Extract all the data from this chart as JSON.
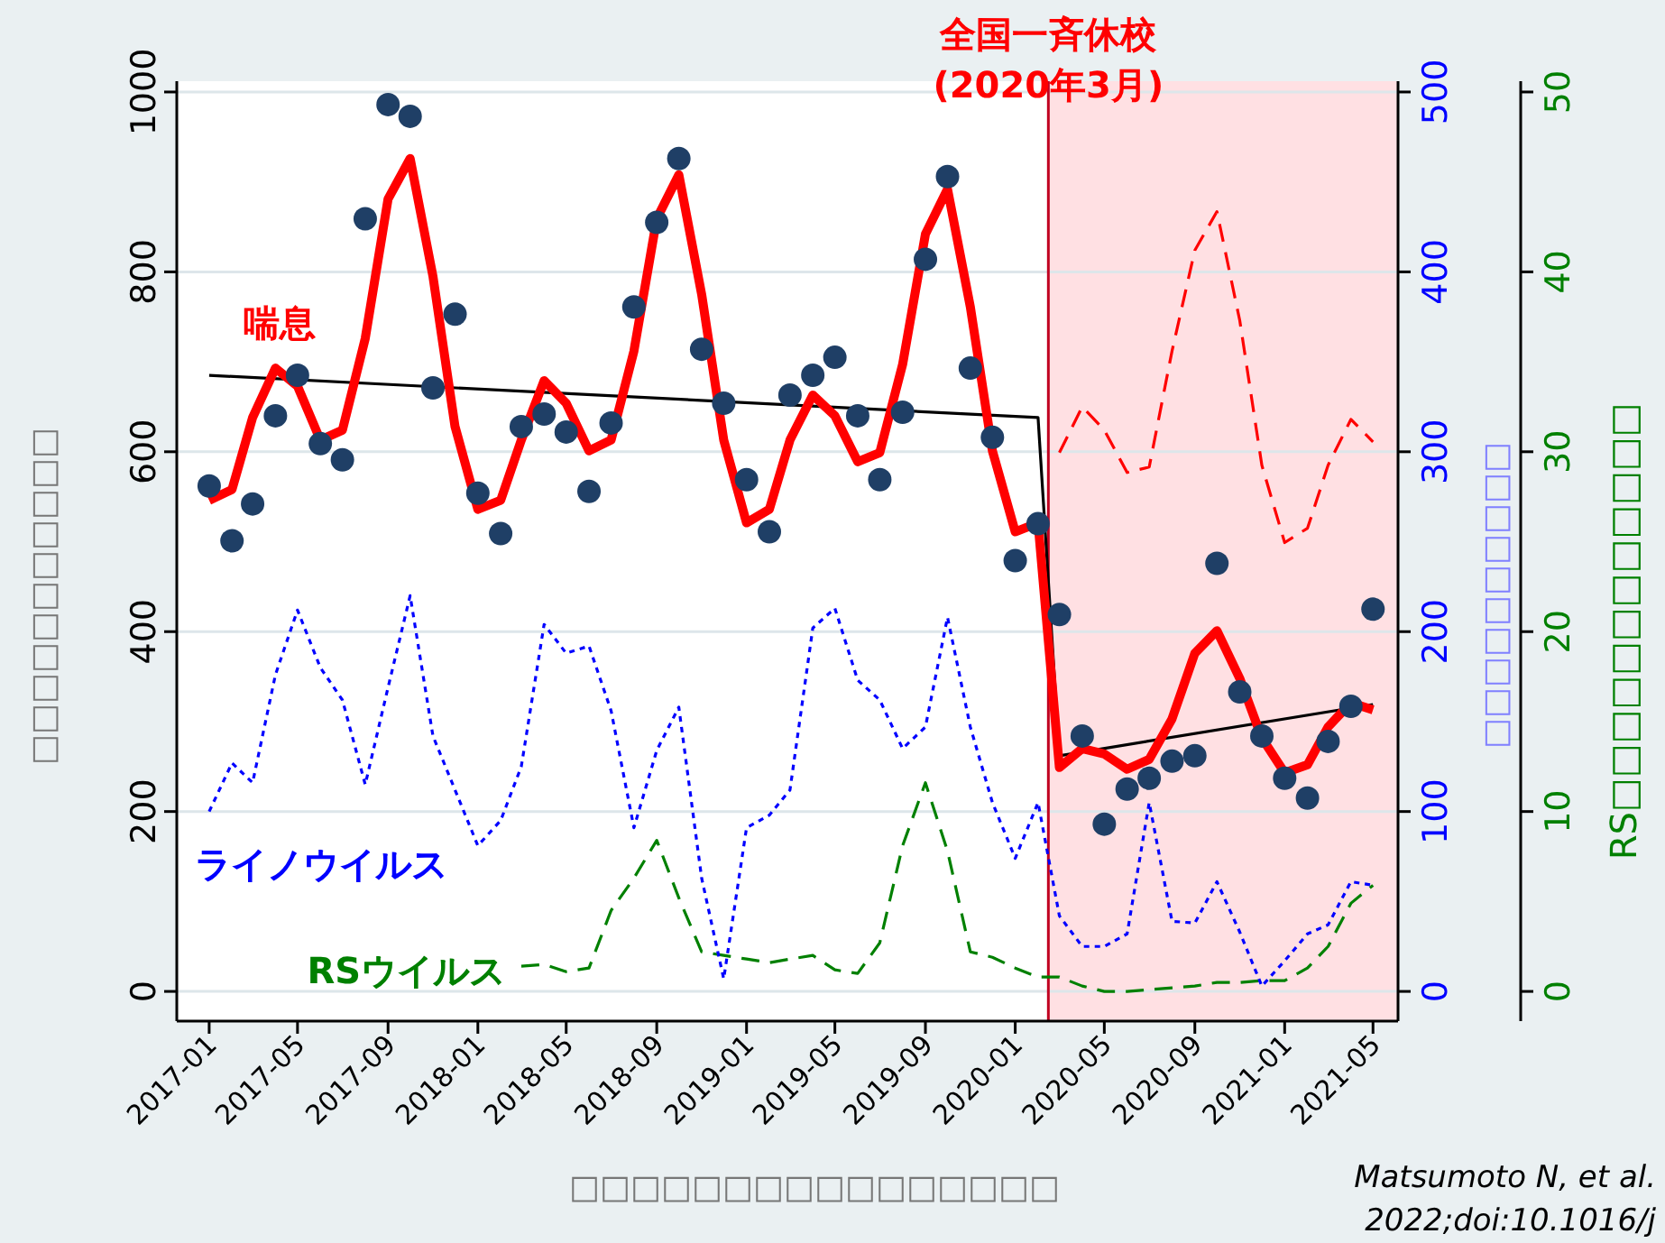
{
  "chart_data": {
    "type": "line",
    "xlabel": "□□□□□□□□□□□□□□□□",
    "ylabel": "□□□□□□□□□□□",
    "y2label": "□□□□□□□□□□",
    "y3label": "RS□□□□□□□□□□□□",
    "x": [
      "2017-01",
      "2017-02",
      "2017-03",
      "2017-04",
      "2017-05",
      "2017-06",
      "2017-07",
      "2017-08",
      "2017-09",
      "2017-10",
      "2017-11",
      "2017-12",
      "2018-01",
      "2018-02",
      "2018-03",
      "2018-04",
      "2018-05",
      "2018-06",
      "2018-07",
      "2018-08",
      "2018-09",
      "2018-10",
      "2018-11",
      "2018-12",
      "2019-01",
      "2019-02",
      "2019-03",
      "2019-04",
      "2019-05",
      "2019-06",
      "2019-07",
      "2019-08",
      "2019-09",
      "2019-10",
      "2019-11",
      "2019-12",
      "2020-01",
      "2020-02",
      "2020-03",
      "2020-04",
      "2020-05",
      "2020-06",
      "2020-07",
      "2020-08",
      "2020-09",
      "2020-10",
      "2020-11",
      "2020-12",
      "2021-01",
      "2021-02",
      "2021-03",
      "2021-04",
      "2021-05"
    ],
    "xlim": [
      "2016-11-18",
      "2021-06-04"
    ],
    "xticks": [
      "2017-01",
      "2017-05",
      "2017-09",
      "2018-01",
      "2018-05",
      "2018-09",
      "2019-01",
      "2019-05",
      "2019-09",
      "2020-01",
      "2020-05",
      "2020-09",
      "2021-01",
      "2021-05"
    ],
    "ylim": [
      -33,
      1012
    ],
    "yticks": [
      0,
      200,
      400,
      600,
      800,
      1000
    ],
    "y2lim": [
      -16.5,
      506
    ],
    "y2ticks": [
      0,
      100,
      200,
      300,
      400,
      500
    ],
    "y3lim": [
      -1.65,
      50.6
    ],
    "y3ticks": [
      0,
      10,
      20,
      30,
      40,
      50
    ],
    "grid": "y",
    "series": [
      {
        "type": "scatter",
        "marker": "circle",
        "color": "#1f3f66",
        "values": [
          562,
          501,
          542,
          640,
          685,
          609,
          591,
          859,
          986,
          973,
          671,
          753,
          554,
          509,
          628,
          642,
          622,
          556,
          632,
          761,
          855,
          926,
          714,
          654,
          569,
          511,
          663,
          685,
          705,
          640,
          569,
          644,
          814,
          906,
          693,
          616,
          479,
          520,
          419,
          284,
          186,
          225,
          237,
          256,
          262,
          476,
          333,
          284,
          237,
          215,
          278,
          317,
          425
        ]
      },
      {
        "name": "喘息",
        "color": "#ff0000",
        "line_style": "solid",
        "values": [
          546,
          558,
          638,
          693,
          673,
          613,
          624,
          726,
          881,
          926,
          795,
          628,
          536,
          546,
          613,
          679,
          654,
          601,
          613,
          712,
          859,
          908,
          775,
          613,
          521,
          536,
          613,
          663,
          640,
          589,
          599,
          697,
          842,
          892,
          761,
          601,
          511,
          521,
          249,
          270,
          264,
          247,
          258,
          303,
          376,
          401,
          348,
          282,
          243,
          252,
          294,
          321,
          313
        ]
      },
      {
        "color": "#ff0000",
        "line_style": "dashed",
        "values": [
          null,
          null,
          null,
          null,
          null,
          null,
          null,
          null,
          null,
          null,
          null,
          null,
          null,
          null,
          null,
          null,
          null,
          null,
          null,
          null,
          null,
          null,
          null,
          null,
          null,
          null,
          null,
          null,
          null,
          null,
          null,
          null,
          null,
          null,
          null,
          null,
          null,
          null,
          599,
          650,
          624,
          577,
          583,
          712,
          824,
          867,
          746,
          585,
          499,
          515,
          585,
          636,
          611
        ]
      },
      {
        "color": "#000000",
        "line_style": "solid",
        "x": [
          "2017-01",
          "2020-02",
          "2020-03",
          "2021-05"
        ],
        "values": [
          685,
          638,
          262,
          319
        ]
      },
      {
        "name": "ライノウイルス",
        "color": "#0000ff",
        "line_style": "dotted",
        "axis": "y2",
        "values": [
          100,
          127,
          116,
          176,
          212,
          180,
          162,
          115,
          169,
          220,
          142,
          112,
          81,
          95,
          125,
          204,
          188,
          192,
          156,
          91,
          134,
          158,
          63,
          7,
          91,
          98,
          112,
          202,
          213,
          173,
          162,
          135,
          147,
          208,
          147,
          105,
          74,
          105,
          42,
          25,
          25,
          32,
          105,
          39,
          38,
          61,
          33,
          3,
          17,
          32,
          37,
          61,
          59
        ]
      },
      {
        "name": "RSウイルス",
        "color": "#008000",
        "line_style": "dashed",
        "axis": "y3",
        "values": [
          null,
          null,
          null,
          null,
          null,
          null,
          null,
          null,
          null,
          null,
          null,
          null,
          null,
          null,
          1.4,
          1.5,
          1.1,
          1.3,
          4.5,
          6.3,
          8.4,
          5.2,
          2.2,
          2.0,
          1.8,
          1.6,
          1.8,
          2.0,
          1.2,
          1.0,
          2.7,
          8.1,
          11.6,
          7.8,
          2.2,
          1.9,
          1.3,
          0.8,
          0.8,
          0.3,
          0.0,
          0.0,
          0.1,
          0.2,
          0.3,
          0.5,
          0.5,
          0.6,
          0.6,
          1.3,
          2.5,
          4.9,
          5.9
        ]
      }
    ],
    "ref_lines": [
      {
        "axis": "x",
        "value": "2020-02-15",
        "label": "全国一斉休校\n(2020年3月)",
        "color": "#c00020"
      }
    ],
    "bands": [
      {
        "axis": "x",
        "from": "2020-02-15",
        "to": "2021-06-04",
        "color": "#ffe0e3"
      }
    ],
    "annotations": [
      "Matsumoto N, et al.",
      "2022;doi:10.1016/j"
    ]
  }
}
